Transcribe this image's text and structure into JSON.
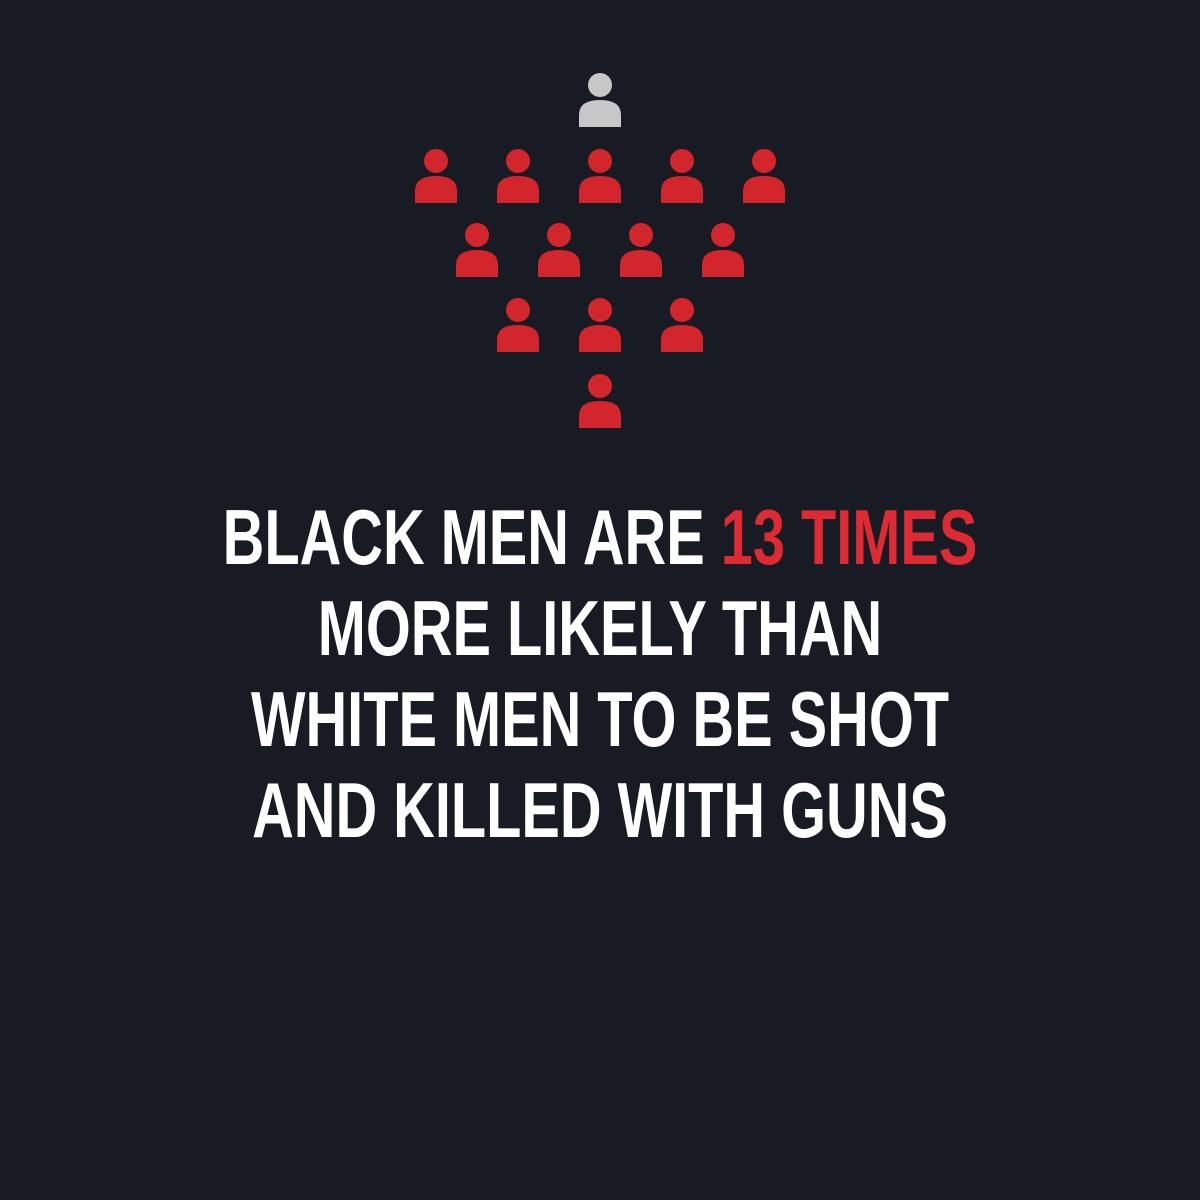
{
  "colors": {
    "background": "#181b24",
    "comparison_figure": "#c8c8c8",
    "highlight_figures": "#d3252c",
    "text": "#ffffff",
    "highlight_text": "#dd2a33"
  },
  "pictograph": {
    "icon": "person-icon",
    "white_men_count": 1,
    "black_men_count": 13
  },
  "headline": {
    "line1_prefix": "BLACK MEN ARE ",
    "line1_highlight": "13 TIMES",
    "line2": "MORE LIKELY THAN",
    "line3": "WHITE MEN TO BE SHOT",
    "line4": "AND KILLED WITH GUNS"
  }
}
